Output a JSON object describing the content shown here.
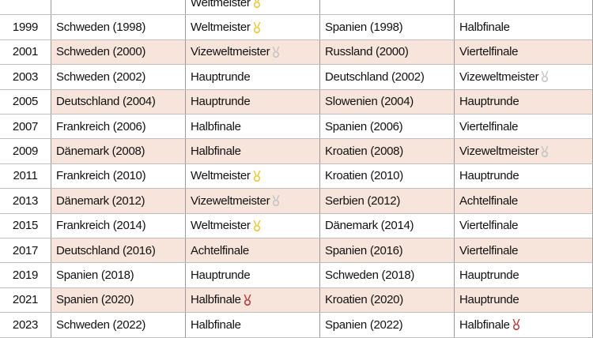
{
  "rows": [
    {
      "year": "",
      "a": "",
      "b": "Weltmeister",
      "b_medal": "gold",
      "c": "",
      "d": "",
      "d_medal": "",
      "alt": false,
      "partial": true
    },
    {
      "year": "1999",
      "a": "Schweden (1998)",
      "b": "Weltmeister",
      "b_medal": "gold",
      "c": "Spanien (1998)",
      "d": "Halbfinale",
      "d_medal": "",
      "alt": false
    },
    {
      "year": "2001",
      "a": "Schweden (2000)",
      "b": "Vizeweltmeister",
      "b_medal": "silver",
      "c": "Russland (2000)",
      "d": "Viertelfinale",
      "d_medal": "",
      "alt": true
    },
    {
      "year": "2003",
      "a": "Schweden (2002)",
      "b": "Hauptrunde",
      "b_medal": "",
      "c": "Deutschland (2002)",
      "d": "Vizeweltmeister",
      "d_medal": "silver",
      "alt": false
    },
    {
      "year": "2005",
      "a": "Deutschland (2004)",
      "b": "Hauptrunde",
      "b_medal": "",
      "c": "Slowenien (2004)",
      "d": "Hauptrunde",
      "d_medal": "",
      "alt": true
    },
    {
      "year": "2007",
      "a": "Frankreich (2006)",
      "b": "Halbfinale",
      "b_medal": "",
      "c": "Spanien (2006)",
      "d": "Viertelfinale",
      "d_medal": "",
      "alt": false
    },
    {
      "year": "2009",
      "a": "Dänemark (2008)",
      "b": "Halbfinale",
      "b_medal": "",
      "c": "Kroatien (2008)",
      "d": "Vizeweltmeister",
      "d_medal": "silver",
      "alt": true
    },
    {
      "year": "2011",
      "a": "Frankreich (2010)",
      "b": "Weltmeister",
      "b_medal": "gold",
      "c": "Kroatien (2010)",
      "d": "Hauptrunde",
      "d_medal": "",
      "alt": false
    },
    {
      "year": "2013",
      "a": "Dänemark (2012)",
      "b": "Vizeweltmeister",
      "b_medal": "silver",
      "c": "Serbien (2012)",
      "d": "Achtelfinale",
      "d_medal": "",
      "alt": true
    },
    {
      "year": "2015",
      "a": "Frankreich (2014)",
      "b": "Weltmeister",
      "b_medal": "gold",
      "c": "Dänemark (2014)",
      "d": "Viertelfinale",
      "d_medal": "",
      "alt": false
    },
    {
      "year": "2017",
      "a": "Deutschland (2016)",
      "b": "Achtelfinale",
      "b_medal": "",
      "c": "Spanien (2016)",
      "d": "Viertelfinale",
      "d_medal": "",
      "alt": true
    },
    {
      "year": "2019",
      "a": "Spanien (2018)",
      "b": "Hauptrunde",
      "b_medal": "",
      "c": "Schweden (2018)",
      "d": "Hauptrunde",
      "d_medal": "",
      "alt": false
    },
    {
      "year": "2021",
      "a": "Spanien (2020)",
      "b": "Halbfinale",
      "b_medal": "bronze",
      "c": "Kroatien (2020)",
      "d": "Hauptrunde",
      "d_medal": "",
      "alt": true
    },
    {
      "year": "2023",
      "a": "Schweden (2022)",
      "b": "Halbfinale",
      "b_medal": "",
      "c": "Spanien (2022)",
      "d": "Halbfinale",
      "d_medal": "bronze",
      "alt": false
    }
  ],
  "medal_colors": {
    "gold": "#e8c630",
    "silver": "#c3c3c3",
    "bronze": "#b33a3a"
  }
}
